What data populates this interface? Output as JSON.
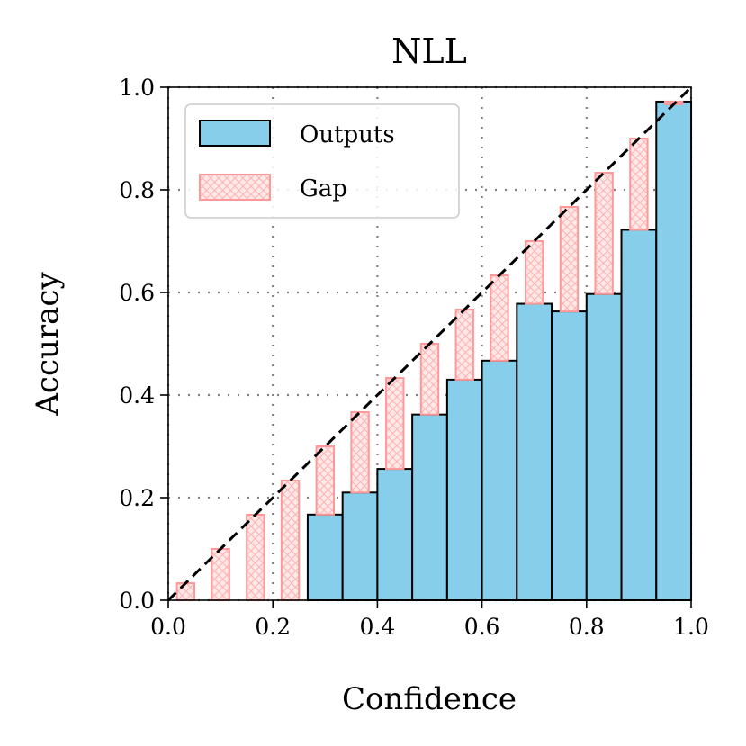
{
  "chart_data": {
    "type": "bar",
    "title": "NLL",
    "xlabel": "Confidence",
    "ylabel": "Accuracy",
    "xlim": [
      0.0,
      1.0
    ],
    "ylim": [
      0.0,
      1.0
    ],
    "xticks": [
      "0.0",
      "0.2",
      "0.4",
      "0.6",
      "0.8",
      "1.0"
    ],
    "yticks": [
      "0.0",
      "0.2",
      "0.4",
      "0.6",
      "0.8",
      "1.0"
    ],
    "grid": true,
    "legend_position": "top-left",
    "bins": 15,
    "bin_width": 0.0667,
    "bin_centers": [
      0.0333,
      0.1,
      0.1667,
      0.2333,
      0.3,
      0.3667,
      0.4333,
      0.5,
      0.5667,
      0.6333,
      0.7,
      0.7667,
      0.8333,
      0.9,
      0.9667
    ],
    "series": [
      {
        "name": "Outputs",
        "color": "#87ceeb",
        "values": [
          0.0,
          0.0,
          0.0,
          0.0,
          0.167,
          0.21,
          0.256,
          0.362,
          0.43,
          0.467,
          0.578,
          0.563,
          0.597,
          0.722,
          0.972
        ]
      },
      {
        "name": "Gap",
        "color": "#ff9999",
        "top_values": [
          0.0333,
          0.1,
          0.1667,
          0.2333,
          0.3,
          0.3667,
          0.4333,
          0.5,
          0.5667,
          0.6333,
          0.7,
          0.7667,
          0.8333,
          0.9,
          0.9667
        ]
      }
    ],
    "reference_line": "y = x"
  }
}
